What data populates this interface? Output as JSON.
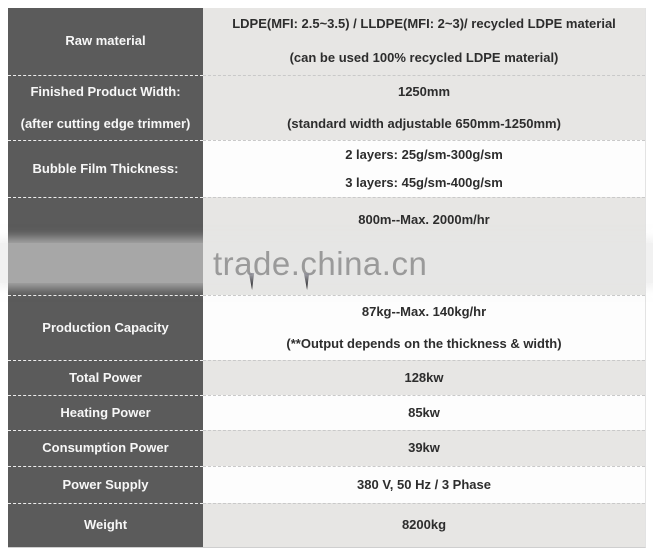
{
  "watermark": {
    "text": "trade.china.cn"
  },
  "colors": {
    "label_column_bg": "#5b5b5b",
    "row_gray_bg": "#e7e6e4",
    "row_white_bg": "#fdfdfd",
    "label_text": "#f7f7f7",
    "value_text": "#2d2d2d",
    "watermark_text": "#9a9a9a"
  },
  "table": {
    "rows": [
      {
        "label": "Raw material",
        "value1": "LDPE(MFI: 2.5~3.5) / LLDPE(MFI: 2~3)/ recycled LDPE material",
        "value2": "(can be used 100% recycled LDPE material)"
      },
      {
        "label": "Finished Product Width:",
        "sublabel": "(after cutting edge trimmer)",
        "value1": "1250mm",
        "value2": "(standard width adjustable 650mm-1250mm)"
      },
      {
        "label": "Bubble Film Thickness:",
        "value1": "2 layers: 25g/sm-300g/sm",
        "value2": "3 layers: 45g/sm-400g/sm"
      },
      {
        "label": "",
        "value1": "800m--Max. 2000m/hr"
      },
      {
        "label": "Production Capacity",
        "value1": "87kg--Max. 140kg/hr",
        "value2": "(**Output depends on the thickness & width)"
      },
      {
        "label": "Total Power",
        "value1": "128kw"
      },
      {
        "label": "Heating Power",
        "value1": "85kw"
      },
      {
        "label": "Consumption Power",
        "value1": "39kw"
      },
      {
        "label": "Power Supply",
        "value1": "380 V, 50 Hz / 3 Phase"
      },
      {
        "label": "Weight",
        "value1": "8200kg"
      }
    ]
  }
}
